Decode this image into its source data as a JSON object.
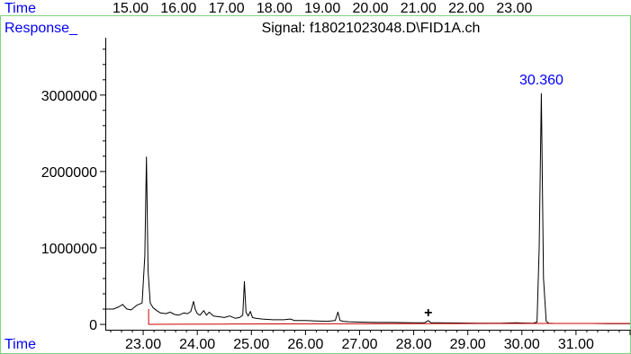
{
  "top_strip": {
    "left_label": "Time",
    "ticks": [
      "15.00",
      "16.00",
      "17.00",
      "18.00",
      "19.00",
      "20.00",
      "21.00",
      "22.00",
      "23.00"
    ]
  },
  "header": {
    "response_label": "Response_",
    "signal_title": "Signal: f18021023048.D\\FID1A.ch"
  },
  "bottom_axis": {
    "label": "Time"
  },
  "colors": {
    "trace": "#000000",
    "baseline": "#cc0000",
    "label_blue": "#0000ff",
    "frame": "#7fd47f"
  },
  "chart_data": {
    "type": "line",
    "xlabel": "Time",
    "ylabel": "Response_",
    "xlim": [
      22.3,
      32.0
    ],
    "ylim": [
      -70000,
      3750000
    ],
    "x_ticks": [
      23.0,
      24.0,
      25.0,
      26.0,
      27.0,
      28.0,
      29.0,
      30.0,
      31.0
    ],
    "x_tick_labels": [
      "23.00",
      "24.00",
      "25.00",
      "26.00",
      "27.00",
      "28.00",
      "29.00",
      "30.00",
      "31.00"
    ],
    "y_ticks": [
      0,
      1000000,
      2000000,
      3000000
    ],
    "y_tick_labels": [
      "0",
      "1000000",
      "2000000",
      "3000000"
    ],
    "peak_annotations": [
      {
        "x": 30.36,
        "y": 3020000,
        "label": "30.360"
      }
    ],
    "marker_annotations": [
      {
        "x": 28.27,
        "y": 120000,
        "label": "+"
      }
    ],
    "series": [
      {
        "name": "FID1A",
        "x": [
          22.3,
          22.45,
          22.55,
          22.62,
          22.7,
          22.78,
          22.88,
          22.98,
          23.03,
          23.06,
          23.09,
          23.13,
          23.18,
          23.25,
          23.32,
          23.42,
          23.5,
          23.58,
          23.66,
          23.75,
          23.82,
          23.88,
          23.93,
          23.96,
          24.0,
          24.05,
          24.12,
          24.17,
          24.22,
          24.3,
          24.4,
          24.5,
          24.6,
          24.7,
          24.78,
          24.84,
          24.87,
          24.9,
          24.94,
          24.98,
          25.02,
          25.08,
          25.2,
          25.4,
          25.6,
          25.72,
          25.8,
          26.0,
          26.2,
          26.4,
          26.55,
          26.6,
          26.64,
          26.7,
          26.8,
          27.0,
          27.3,
          27.6,
          28.0,
          28.2,
          28.27,
          28.32,
          28.45,
          28.8,
          29.2,
          29.6,
          29.9,
          30.0,
          30.2,
          30.28,
          30.32,
          30.36,
          30.4,
          30.45,
          30.5,
          30.6,
          30.8,
          31.0,
          31.3,
          31.6,
          32.0
        ],
        "y": [
          200000,
          200000,
          230000,
          260000,
          200000,
          190000,
          250000,
          280000,
          900000,
          2190000,
          700000,
          280000,
          220000,
          180000,
          150000,
          140000,
          160000,
          130000,
          120000,
          150000,
          140000,
          170000,
          300000,
          200000,
          140000,
          120000,
          180000,
          120000,
          160000,
          110000,
          100000,
          90000,
          110000,
          80000,
          90000,
          120000,
          560000,
          160000,
          110000,
          170000,
          90000,
          80000,
          70000,
          60000,
          60000,
          70000,
          50000,
          50000,
          45000,
          40000,
          50000,
          160000,
          50000,
          40000,
          35000,
          30000,
          25000,
          25000,
          22000,
          20000,
          50000,
          20000,
          20000,
          18000,
          16000,
          15000,
          20000,
          18000,
          15000,
          30000,
          1000000,
          3020000,
          600000,
          40000,
          15000,
          12000,
          12000,
          12000,
          12000,
          10000,
          10000
        ]
      },
      {
        "name": "baseline",
        "x": [
          23.1,
          23.1,
          23.5,
          24.5,
          25.5,
          26.5,
          27.5,
          28.5,
          29.5,
          30.3,
          31.0,
          32.0
        ],
        "y": [
          200000,
          0,
          2000,
          4000,
          6000,
          8000,
          10000,
          11000,
          12000,
          12000,
          12000,
          12000
        ]
      }
    ]
  }
}
